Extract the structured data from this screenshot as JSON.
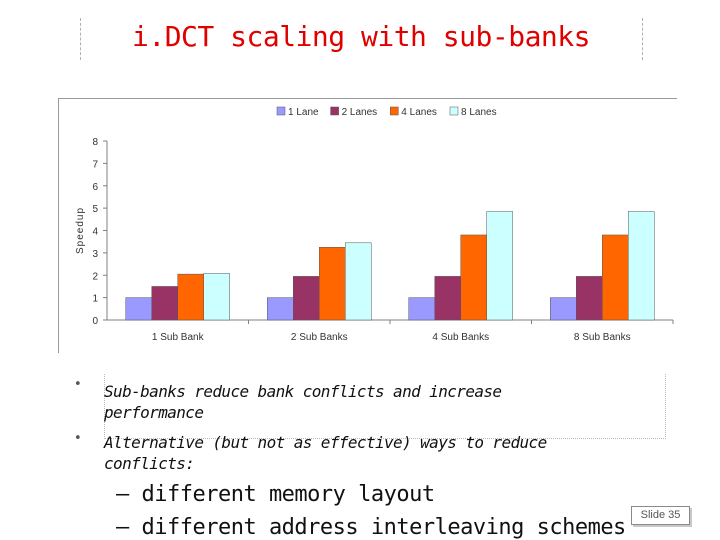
{
  "slide": {
    "title": "i.DCT scaling with sub-banks",
    "bullets": [
      {
        "marker": "•",
        "lines": [
          "  Sub-banks reduce bank conflicts and increase",
          "performance"
        ]
      },
      {
        "marker": "•",
        "lines": [
          "Alternative (but not as effective) ways to reduce",
          "conflicts:"
        ]
      }
    ],
    "sub_items": [
      "– different memory layout",
      "– different address interleaving schemes"
    ],
    "slide_number": "Slide 35"
  },
  "chart_data": {
    "type": "bar",
    "title": "",
    "xlabel": "",
    "ylabel": "Speedup",
    "ylim": [
      0,
      8
    ],
    "yticks": [
      0,
      1,
      2,
      3,
      4,
      5,
      6,
      7,
      8
    ],
    "grid": false,
    "legend_position": "top",
    "categories": [
      "1 Sub Bank",
      "2 Sub Banks",
      "4 Sub Banks",
      "8 Sub Banks"
    ],
    "series": [
      {
        "name": "1 Lane",
        "color": "#9999ff",
        "values": [
          1.0,
          1.0,
          1.0,
          1.0
        ]
      },
      {
        "name": "2 Lanes",
        "color": "#993366",
        "values": [
          1.5,
          1.95,
          1.95,
          1.95
        ]
      },
      {
        "name": "4 Lanes",
        "color": "#ff6600",
        "values": [
          2.05,
          3.25,
          3.8,
          3.8
        ]
      },
      {
        "name": "8 Lanes",
        "color": "#ccffff",
        "values": [
          2.08,
          3.45,
          4.85,
          4.85
        ]
      }
    ]
  }
}
